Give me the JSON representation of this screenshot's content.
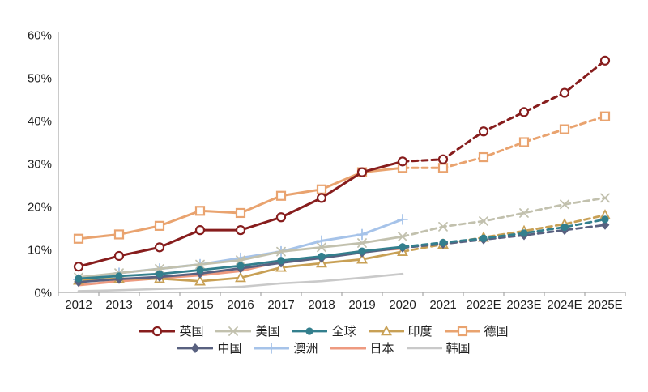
{
  "chart_data": {
    "type": "line",
    "title": "",
    "xlabel": "",
    "ylabel": "",
    "ylim": [
      0,
      60
    ],
    "yticks": [
      0,
      10,
      20,
      30,
      40,
      50,
      60
    ],
    "ytick_suffix": "%",
    "grid": false,
    "legend_position": "bottom",
    "axis_color": "#A6A6A6",
    "text_color": "#1F1F1F",
    "x": [
      "2012",
      "2013",
      "2014",
      "2015",
      "2016",
      "2017",
      "2018",
      "2019",
      "2020",
      "2021",
      "2022E",
      "2023E",
      "2024E",
      "2025E"
    ],
    "note": "dashed segments from 2020 onward are forecast (E)",
    "series": [
      {
        "key": "uk",
        "name": "英国",
        "color": "#871D1D",
        "marker": "open-circle",
        "line_width": 3,
        "values": [
          6,
          8.5,
          10.5,
          14.5,
          14.5,
          17.5,
          22,
          28,
          30.5,
          31,
          37.5,
          42,
          46.5,
          54
        ],
        "dashed_from_index": 8
      },
      {
        "key": "us",
        "name": "美国",
        "color": "#C2C1AE",
        "marker": "x",
        "line_width": 2.8,
        "values": [
          3.5,
          4.5,
          5.5,
          6.5,
          7.5,
          9.5,
          10.5,
          11.5,
          13,
          15.3,
          16.6,
          18.5,
          20.5,
          22
        ],
        "dashed_from_index": 8
      },
      {
        "key": "global",
        "name": "全球",
        "color": "#337F8D",
        "marker": "filled-circle",
        "line_width": 2.8,
        "values": [
          3.2,
          3.8,
          4.3,
          5.2,
          6.2,
          7.4,
          8.4,
          9.6,
          10.6,
          11.6,
          12.6,
          13.8,
          15.2,
          17
        ],
        "dashed_from_index": 8
      },
      {
        "key": "india",
        "name": "印度",
        "color": "#C8A055",
        "marker": "open-triangle",
        "line_width": 2.8,
        "values": [
          2.8,
          3.2,
          3.2,
          2.6,
          3.4,
          5.8,
          6.8,
          7.7,
          9.5,
          11.2,
          12.8,
          14.3,
          15.9,
          18
        ],
        "dashed_from_index": 8
      },
      {
        "key": "germany",
        "name": "德国",
        "color": "#E9A36F",
        "marker": "open-square",
        "line_width": 3,
        "values": [
          12.5,
          13.5,
          15.5,
          19,
          18.5,
          22.5,
          24,
          28,
          29,
          29,
          31.5,
          35,
          38,
          41
        ],
        "dashed_from_index": 8
      },
      {
        "key": "china",
        "name": "中国",
        "color": "#596180",
        "marker": "filled-diamond",
        "line_width": 2.8,
        "values": [
          2.4,
          3.1,
          3.6,
          4.4,
          5.6,
          6.9,
          8,
          9.3,
          10.4,
          11.3,
          12.3,
          13.3,
          14.5,
          15.7
        ],
        "dashed_from_index": 8
      },
      {
        "key": "australia",
        "name": "澳洲",
        "color": "#A6C3E9",
        "marker": "plus",
        "line_width": 3,
        "values": [
          3,
          4.5,
          5.5,
          6.5,
          8,
          9.5,
          12,
          13.5,
          17,
          null,
          null,
          null,
          null,
          null
        ],
        "dashed_from_index": null
      },
      {
        "key": "japan",
        "name": "日本",
        "color": "#EE9A80",
        "marker": "none",
        "line_width": 3,
        "values": [
          1.7,
          2.6,
          3.3,
          4,
          5,
          7.2,
          8.2,
          9.6,
          10.2,
          null,
          null,
          null,
          null,
          null
        ],
        "dashed_from_index": null
      },
      {
        "key": "korea",
        "name": "韩国",
        "color": "#C9C9C9",
        "marker": "none",
        "line_width": 2.6,
        "values": [
          0.3,
          0.5,
          0.8,
          1,
          1.3,
          2.1,
          2.6,
          3.4,
          4.3,
          null,
          null,
          null,
          null,
          null
        ],
        "dashed_from_index": null
      }
    ],
    "legend_rows": [
      [
        "英国",
        "美国",
        "全球",
        "印度",
        "德国"
      ],
      [
        "中国",
        "澳洲",
        "日本",
        "韩国"
      ]
    ]
  }
}
